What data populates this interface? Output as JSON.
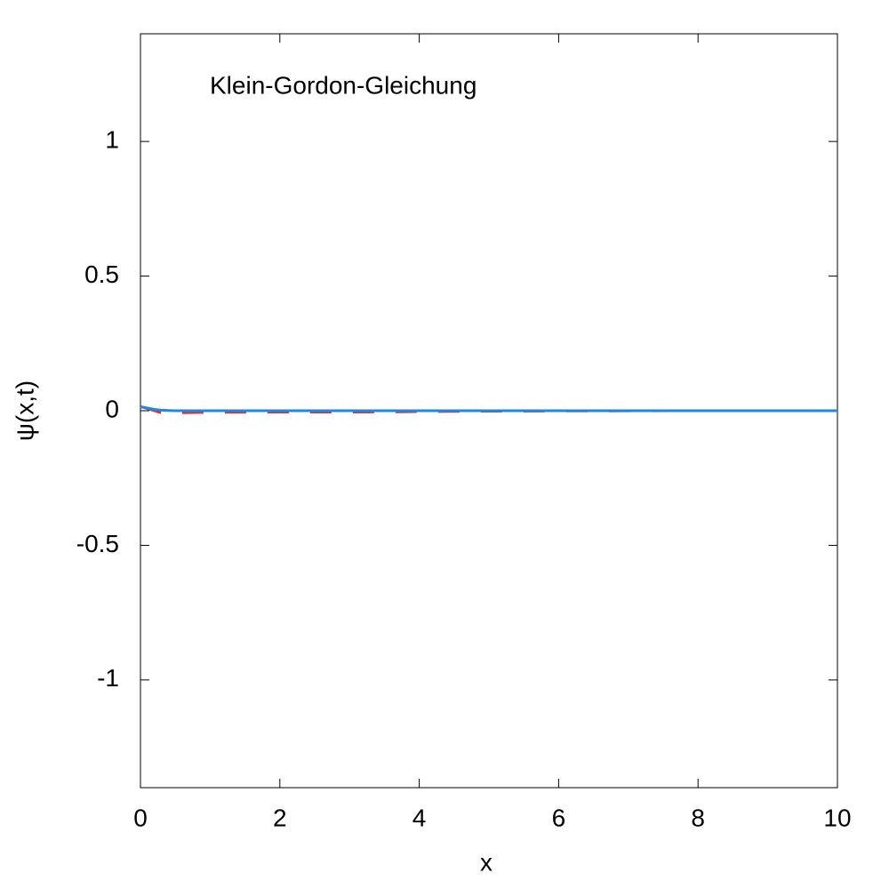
{
  "chart_data": {
    "type": "line",
    "annotation": "Klein-Gordon-Gleichung",
    "xlabel": "x",
    "ylabel": "ψ(x,t)",
    "x": [
      0,
      0.1,
      0.2,
      0.3,
      0.4,
      0.5,
      1,
      2,
      3,
      3.7,
      4,
      6,
      8,
      10
    ],
    "series": [
      {
        "color": "#e0302a",
        "dash": true,
        "values": [
          0.015,
          0.008,
          0,
          -0.008,
          -0.01,
          -0.008,
          -0.006,
          -0.005,
          -0.005,
          -0.004,
          -0.003,
          -0.001,
          0,
          0
        ]
      },
      {
        "color": "#1e88e5",
        "dash": false,
        "values": [
          0.015,
          0.01,
          0.005,
          0.002,
          0.001,
          0,
          0,
          0,
          0,
          0,
          0,
          0,
          0,
          0
        ]
      }
    ],
    "xlim": [
      0,
      10
    ],
    "xticks": [
      0,
      2,
      4,
      6,
      8,
      10
    ],
    "ylim": [
      -1.4,
      1.4
    ],
    "yticks": [
      -1,
      -0.5,
      0,
      0.5,
      1
    ]
  }
}
